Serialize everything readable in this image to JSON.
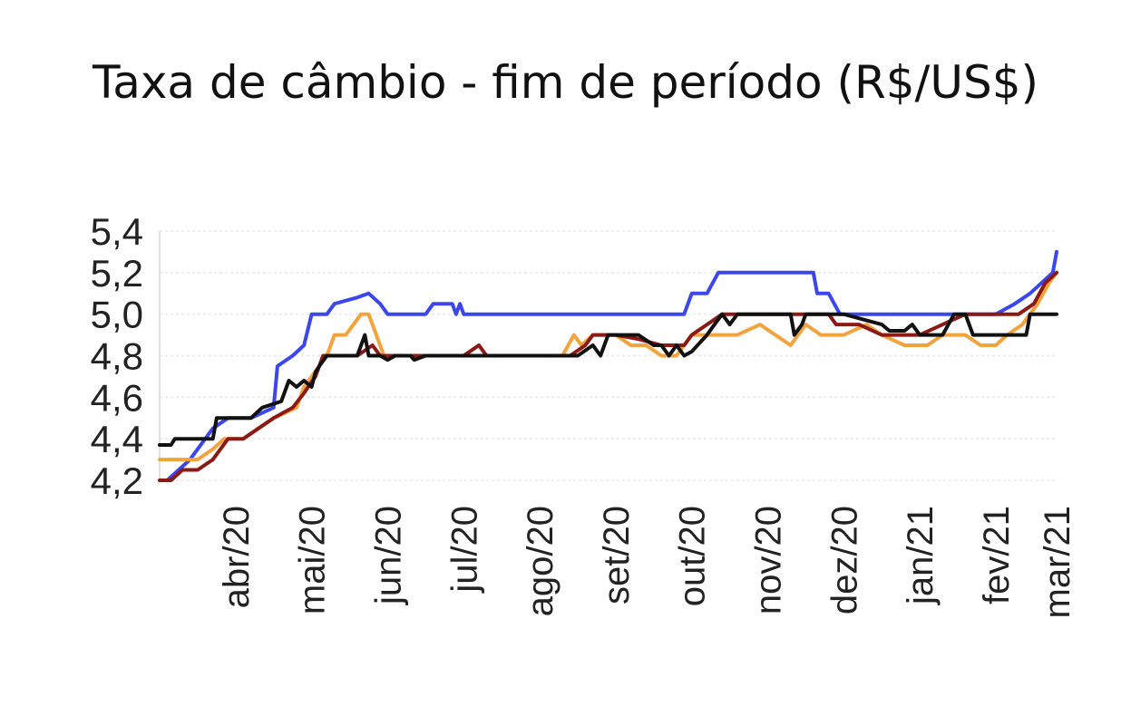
{
  "chart_data": {
    "type": "line",
    "title": "Taxa de câmbio - fim de período (R$/US$)",
    "xlabel": "",
    "ylabel": "",
    "xlim": [
      0,
      11.8
    ],
    "ylim": [
      4.2,
      5.4
    ],
    "y_ticks": [
      {
        "value": 4.2,
        "label": "4,2"
      },
      {
        "value": 4.4,
        "label": "4,4"
      },
      {
        "value": 4.6,
        "label": "4,6"
      },
      {
        "value": 4.8,
        "label": "4,8"
      },
      {
        "value": 5.0,
        "label": "5,0"
      },
      {
        "value": 5.2,
        "label": "5,2"
      },
      {
        "value": 5.4,
        "label": "5,4"
      }
    ],
    "x_ticks": [
      {
        "value": 1,
        "label": "abr/20"
      },
      {
        "value": 2,
        "label": "mai/20"
      },
      {
        "value": 3,
        "label": "jun/20"
      },
      {
        "value": 4,
        "label": "jul/20"
      },
      {
        "value": 5,
        "label": "ago/20"
      },
      {
        "value": 6,
        "label": "set/20"
      },
      {
        "value": 7,
        "label": "out/20"
      },
      {
        "value": 8,
        "label": "nov/20"
      },
      {
        "value": 9,
        "label": "dez/20"
      },
      {
        "value": 10,
        "label": "jan/21"
      },
      {
        "value": 11,
        "label": "fev/21"
      },
      {
        "value": 11.8,
        "label": "mar/21"
      }
    ],
    "grid": true,
    "legend": "none",
    "series": [
      {
        "color": "#3b47ea",
        "points": [
          [
            0.1,
            4.2
          ],
          [
            0.4,
            4.3
          ],
          [
            0.7,
            4.45
          ],
          [
            0.9,
            4.5
          ],
          [
            1.2,
            4.5
          ],
          [
            1.5,
            4.55
          ],
          [
            1.55,
            4.75
          ],
          [
            1.75,
            4.8
          ],
          [
            1.9,
            4.85
          ],
          [
            2.0,
            5.0
          ],
          [
            2.2,
            5.0
          ],
          [
            2.3,
            5.05
          ],
          [
            2.6,
            5.08
          ],
          [
            2.75,
            5.1
          ],
          [
            2.9,
            5.05
          ],
          [
            3.0,
            5.0
          ],
          [
            3.5,
            5.0
          ],
          [
            3.6,
            5.05
          ],
          [
            3.85,
            5.05
          ],
          [
            3.9,
            5.0
          ],
          [
            3.95,
            5.05
          ],
          [
            4.0,
            5.0
          ],
          [
            4.5,
            5.0
          ],
          [
            5.5,
            5.0
          ],
          [
            6.5,
            5.0
          ],
          [
            6.9,
            5.0
          ],
          [
            7.0,
            5.1
          ],
          [
            7.2,
            5.1
          ],
          [
            7.35,
            5.2
          ],
          [
            8.0,
            5.2
          ],
          [
            8.6,
            5.2
          ],
          [
            8.65,
            5.1
          ],
          [
            8.8,
            5.1
          ],
          [
            8.95,
            5.0
          ],
          [
            9.5,
            5.0
          ],
          [
            10.0,
            5.0
          ],
          [
            10.5,
            5.0
          ],
          [
            11.0,
            5.0
          ],
          [
            11.25,
            5.05
          ],
          [
            11.45,
            5.1
          ],
          [
            11.6,
            5.15
          ],
          [
            11.75,
            5.2
          ],
          [
            11.8,
            5.3
          ]
        ]
      },
      {
        "color": "#f3a33b",
        "points": [
          [
            0.0,
            4.3
          ],
          [
            0.5,
            4.3
          ],
          [
            0.7,
            4.35
          ],
          [
            0.85,
            4.4
          ],
          [
            1.1,
            4.4
          ],
          [
            1.3,
            4.45
          ],
          [
            1.5,
            4.5
          ],
          [
            1.8,
            4.55
          ],
          [
            1.9,
            4.65
          ],
          [
            2.1,
            4.75
          ],
          [
            2.2,
            4.8
          ],
          [
            2.3,
            4.9
          ],
          [
            2.45,
            4.9
          ],
          [
            2.55,
            4.95
          ],
          [
            2.65,
            5.0
          ],
          [
            2.75,
            5.0
          ],
          [
            2.85,
            4.9
          ],
          [
            2.95,
            4.8
          ],
          [
            3.2,
            4.8
          ],
          [
            3.6,
            4.8
          ],
          [
            4.0,
            4.8
          ],
          [
            4.2,
            4.85
          ],
          [
            4.3,
            4.8
          ],
          [
            5.0,
            4.8
          ],
          [
            5.3,
            4.8
          ],
          [
            5.45,
            4.9
          ],
          [
            5.55,
            4.85
          ],
          [
            5.7,
            4.9
          ],
          [
            6.0,
            4.9
          ],
          [
            6.2,
            4.85
          ],
          [
            6.4,
            4.85
          ],
          [
            6.6,
            4.8
          ],
          [
            6.8,
            4.8
          ],
          [
            7.0,
            4.9
          ],
          [
            7.3,
            4.9
          ],
          [
            7.6,
            4.9
          ],
          [
            7.9,
            4.95
          ],
          [
            8.1,
            4.9
          ],
          [
            8.3,
            4.85
          ],
          [
            8.5,
            4.95
          ],
          [
            8.7,
            4.9
          ],
          [
            9.0,
            4.9
          ],
          [
            9.3,
            4.95
          ],
          [
            9.5,
            4.9
          ],
          [
            9.8,
            4.85
          ],
          [
            10.1,
            4.85
          ],
          [
            10.3,
            4.9
          ],
          [
            10.6,
            4.9
          ],
          [
            10.8,
            4.85
          ],
          [
            11.0,
            4.85
          ],
          [
            11.15,
            4.9
          ],
          [
            11.35,
            4.95
          ],
          [
            11.55,
            5.05
          ],
          [
            11.7,
            5.15
          ],
          [
            11.8,
            5.2
          ]
        ]
      },
      {
        "color": "#8b1a14",
        "points": [
          [
            0.0,
            4.2
          ],
          [
            0.15,
            4.2
          ],
          [
            0.3,
            4.25
          ],
          [
            0.5,
            4.25
          ],
          [
            0.7,
            4.3
          ],
          [
            0.9,
            4.4
          ],
          [
            1.1,
            4.4
          ],
          [
            1.3,
            4.45
          ],
          [
            1.5,
            4.5
          ],
          [
            1.75,
            4.55
          ],
          [
            1.9,
            4.62
          ],
          [
            2.05,
            4.7
          ],
          [
            2.15,
            4.8
          ],
          [
            2.3,
            4.8
          ],
          [
            2.6,
            4.8
          ],
          [
            2.8,
            4.85
          ],
          [
            2.9,
            4.8
          ],
          [
            3.1,
            4.8
          ],
          [
            3.6,
            4.8
          ],
          [
            4.0,
            4.8
          ],
          [
            4.2,
            4.85
          ],
          [
            4.3,
            4.8
          ],
          [
            5.0,
            4.8
          ],
          [
            5.4,
            4.8
          ],
          [
            5.6,
            4.85
          ],
          [
            5.7,
            4.9
          ],
          [
            6.0,
            4.9
          ],
          [
            6.3,
            4.88
          ],
          [
            6.6,
            4.85
          ],
          [
            6.75,
            4.85
          ],
          [
            6.9,
            4.85
          ],
          [
            7.0,
            4.9
          ],
          [
            7.2,
            4.95
          ],
          [
            7.4,
            5.0
          ],
          [
            8.0,
            5.0
          ],
          [
            8.5,
            5.0
          ],
          [
            8.8,
            5.0
          ],
          [
            8.9,
            4.95
          ],
          [
            9.2,
            4.95
          ],
          [
            9.5,
            4.9
          ],
          [
            9.8,
            4.9
          ],
          [
            10.0,
            4.9
          ],
          [
            10.3,
            4.95
          ],
          [
            10.6,
            5.0
          ],
          [
            11.0,
            5.0
          ],
          [
            11.3,
            5.0
          ],
          [
            11.5,
            5.05
          ],
          [
            11.65,
            5.15
          ],
          [
            11.8,
            5.2
          ]
        ]
      },
      {
        "color": "#111111",
        "points": [
          [
            0.0,
            4.37
          ],
          [
            0.15,
            4.37
          ],
          [
            0.2,
            4.4
          ],
          [
            0.7,
            4.4
          ],
          [
            0.75,
            4.5
          ],
          [
            1.2,
            4.5
          ],
          [
            1.35,
            4.55
          ],
          [
            1.6,
            4.58
          ],
          [
            1.7,
            4.68
          ],
          [
            1.8,
            4.65
          ],
          [
            1.9,
            4.68
          ],
          [
            2.0,
            4.65
          ],
          [
            2.05,
            4.72
          ],
          [
            2.1,
            4.75
          ],
          [
            2.2,
            4.8
          ],
          [
            2.6,
            4.8
          ],
          [
            2.7,
            4.9
          ],
          [
            2.75,
            4.8
          ],
          [
            2.9,
            4.8
          ],
          [
            3.0,
            4.78
          ],
          [
            3.1,
            4.8
          ],
          [
            3.3,
            4.8
          ],
          [
            3.35,
            4.78
          ],
          [
            3.5,
            4.8
          ],
          [
            4.0,
            4.8
          ],
          [
            5.0,
            4.8
          ],
          [
            5.5,
            4.8
          ],
          [
            5.7,
            4.85
          ],
          [
            5.8,
            4.8
          ],
          [
            5.9,
            4.9
          ],
          [
            6.3,
            4.9
          ],
          [
            6.5,
            4.85
          ],
          [
            6.6,
            4.85
          ],
          [
            6.7,
            4.8
          ],
          [
            6.8,
            4.85
          ],
          [
            6.9,
            4.8
          ],
          [
            7.0,
            4.82
          ],
          [
            7.2,
            4.9
          ],
          [
            7.3,
            4.95
          ],
          [
            7.4,
            5.0
          ],
          [
            7.5,
            4.95
          ],
          [
            7.6,
            5.0
          ],
          [
            8.0,
            5.0
          ],
          [
            8.3,
            5.0
          ],
          [
            8.35,
            4.9
          ],
          [
            8.45,
            4.95
          ],
          [
            8.5,
            5.0
          ],
          [
            9.0,
            5.0
          ],
          [
            9.5,
            4.95
          ],
          [
            9.6,
            4.92
          ],
          [
            9.8,
            4.92
          ],
          [
            9.9,
            4.95
          ],
          [
            10.0,
            4.9
          ],
          [
            10.3,
            4.9
          ],
          [
            10.45,
            5.0
          ],
          [
            10.6,
            5.0
          ],
          [
            10.7,
            4.9
          ],
          [
            11.0,
            4.9
          ],
          [
            11.4,
            4.9
          ],
          [
            11.45,
            5.0
          ],
          [
            11.8,
            5.0
          ]
        ]
      }
    ]
  }
}
